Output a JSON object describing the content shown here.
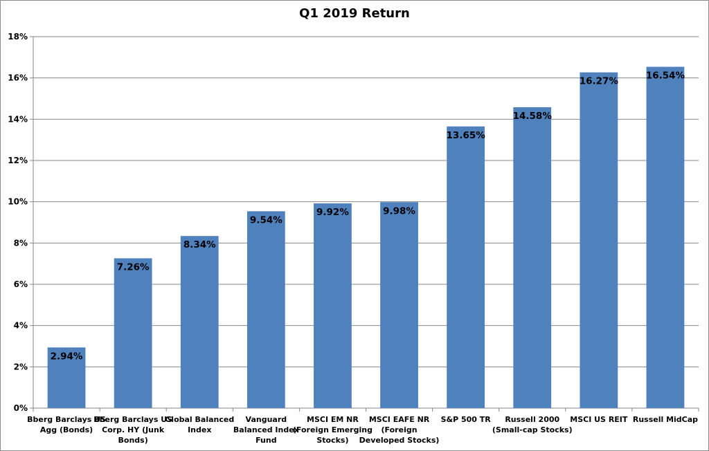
{
  "chart_data": {
    "type": "bar",
    "title": "Q1 2019 Return",
    "categories": [
      [
        "Bberg Barclays US",
        "Agg (Bonds)"
      ],
      [
        "Bberg Barclays US",
        "Corp. HY (Junk",
        "Bonds)"
      ],
      [
        "Global Balanced",
        "Index"
      ],
      [
        "Vanguard",
        "Balanced Index",
        "Fund"
      ],
      [
        "MSCI EM NR",
        "(Foreign Emerging",
        "Stocks)"
      ],
      [
        "MSCI EAFE NR",
        "(Foreign",
        "Developed Stocks)"
      ],
      [
        "S&P 500 TR"
      ],
      [
        "Russell 2000",
        "(Small-cap Stocks)"
      ],
      [
        "MSCI US REIT"
      ],
      [
        "Russell MidCap"
      ]
    ],
    "values": [
      2.94,
      7.26,
      8.34,
      9.54,
      9.92,
      9.98,
      13.65,
      14.58,
      16.27,
      16.54
    ],
    "data_labels": [
      "2.94%",
      "7.26%",
      "8.34%",
      "9.54%",
      "9.92%",
      "9.98%",
      "13.65%",
      "14.58%",
      "16.27%",
      "16.54%"
    ],
    "y_ticks": [
      0,
      2,
      4,
      6,
      8,
      10,
      12,
      14,
      16,
      18
    ],
    "y_tick_labels": [
      "0%",
      "2%",
      "4%",
      "6%",
      "8%",
      "10%",
      "12%",
      "14%",
      "16%",
      "18%"
    ],
    "ylim": [
      0,
      18
    ],
    "xlabel": "",
    "ylabel": "",
    "grid": true,
    "legend": "none",
    "colors": {
      "bar": "#4f81bd",
      "grid": "#868686",
      "axis": "#868686"
    }
  }
}
